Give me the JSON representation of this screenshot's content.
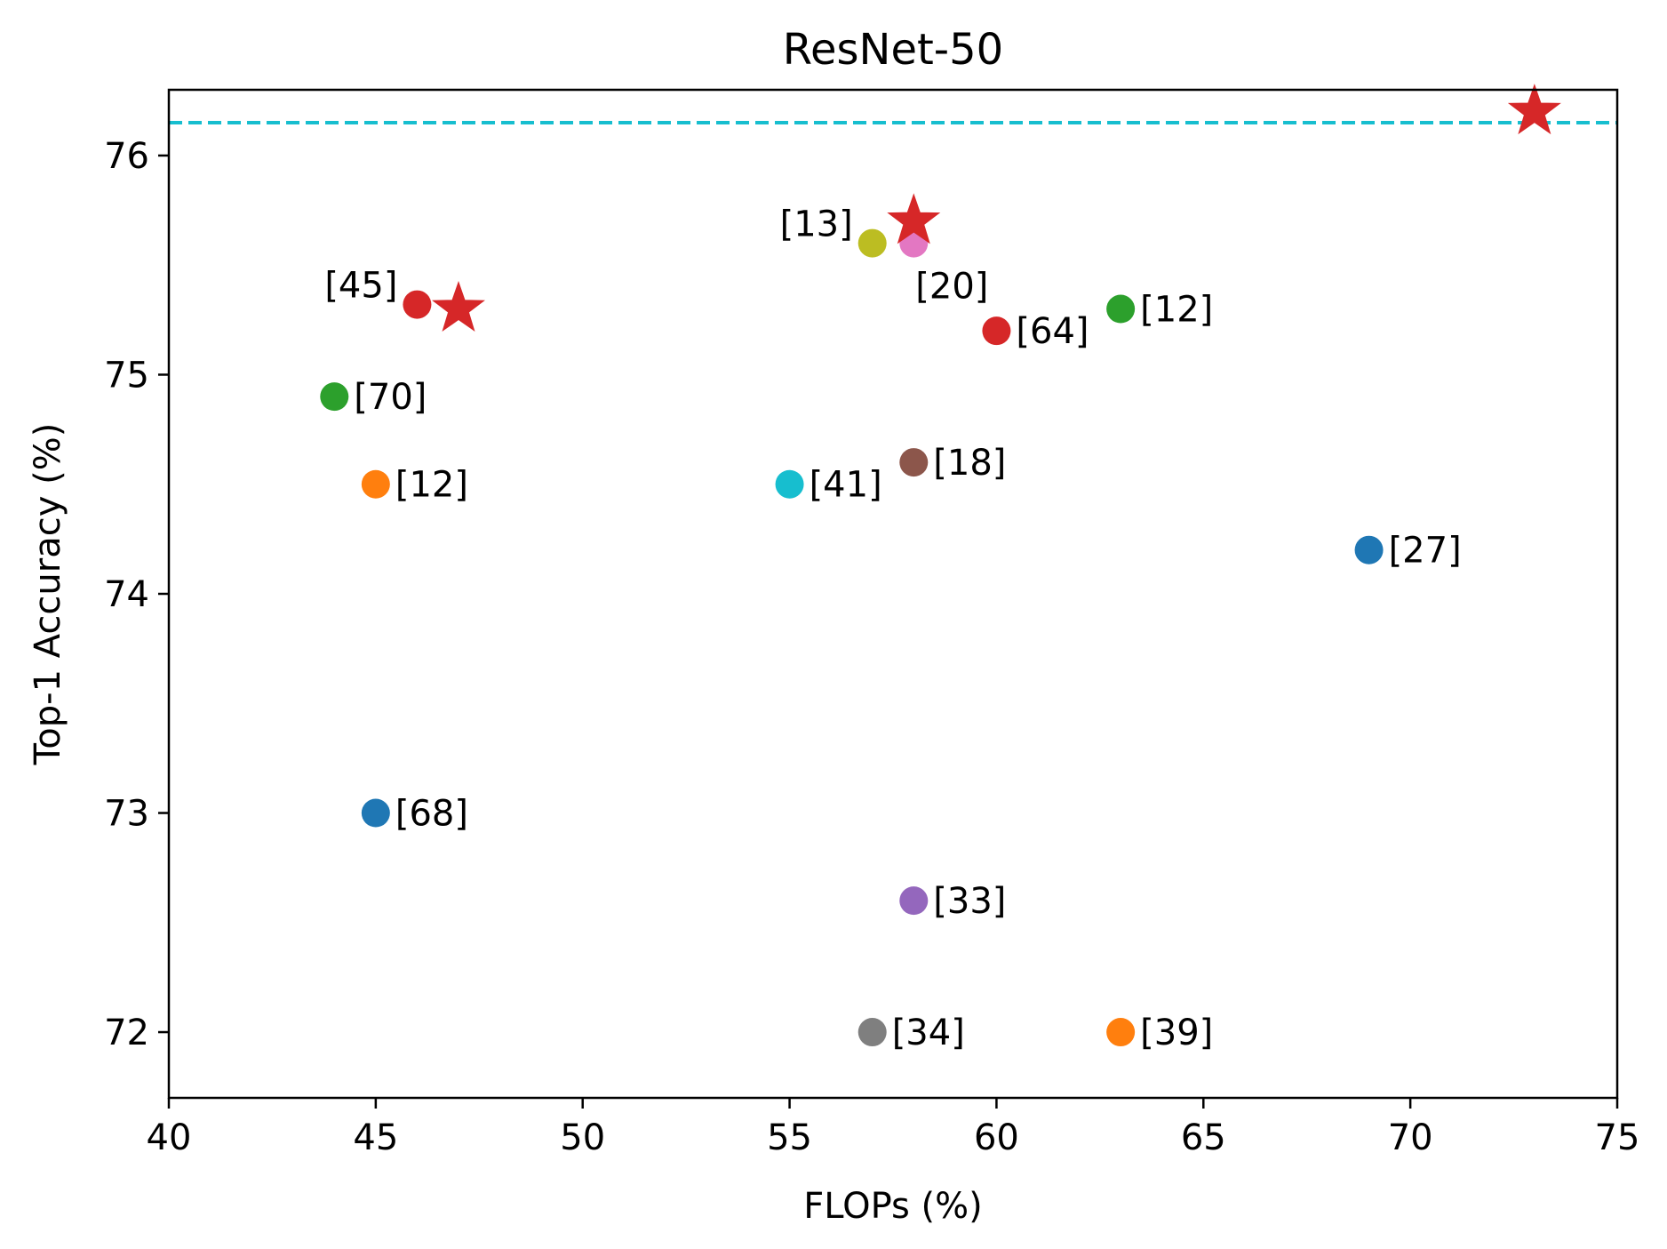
{
  "chart_data": {
    "type": "scatter",
    "title": "ResNet-50",
    "xlabel": "FLOPs (%)",
    "ylabel": "Top-1 Accuracy (%)",
    "xlim": [
      40,
      75
    ],
    "ylim": [
      71.7,
      76.3
    ],
    "xticks": [
      40,
      45,
      50,
      55,
      60,
      65,
      70,
      75
    ],
    "yticks": [
      72,
      73,
      74,
      75,
      76
    ],
    "grid": false,
    "baseline": {
      "y": 76.15,
      "color": "#17becf",
      "style": "dashed"
    },
    "points": [
      {
        "label": "[45]",
        "x": 46,
        "y": 75.32,
        "color": "#d62728",
        "label_pos": "upper-left"
      },
      {
        "label": "[70]",
        "x": 44,
        "y": 74.9,
        "color": "#2ca02c",
        "label_pos": "right"
      },
      {
        "label": "[12]",
        "x": 45,
        "y": 74.5,
        "color": "#ff7f0e",
        "label_pos": "right"
      },
      {
        "label": "[68]",
        "x": 45,
        "y": 73.0,
        "color": "#1f77b4",
        "label_pos": "right"
      },
      {
        "label": "[41]",
        "x": 55,
        "y": 74.5,
        "color": "#17becf",
        "label_pos": "right"
      },
      {
        "label": "[13]",
        "x": 57,
        "y": 75.6,
        "color": "#bcbd22",
        "label_pos": "upper-left"
      },
      {
        "label": "[20]",
        "x": 58,
        "y": 75.6,
        "color": "#e377c2",
        "label_pos": "below"
      },
      {
        "label": "[18]",
        "x": 58,
        "y": 74.6,
        "color": "#8c564b",
        "label_pos": "right"
      },
      {
        "label": "[33]",
        "x": 58,
        "y": 72.6,
        "color": "#9467bd",
        "label_pos": "right"
      },
      {
        "label": "[34]",
        "x": 57,
        "y": 72.0,
        "color": "#7f7f7f",
        "label_pos": "right"
      },
      {
        "label": "[64]",
        "x": 60,
        "y": 75.2,
        "color": "#d62728",
        "label_pos": "right"
      },
      {
        "label": "[12]",
        "x": 63,
        "y": 75.3,
        "color": "#2ca02c",
        "label_pos": "right"
      },
      {
        "label": "[39]",
        "x": 63,
        "y": 72.0,
        "color": "#ff7f0e",
        "label_pos": "right"
      },
      {
        "label": "[27]",
        "x": 69,
        "y": 74.2,
        "color": "#1f77b4",
        "label_pos": "right"
      }
    ],
    "stars": [
      {
        "x": 47,
        "y": 75.3,
        "color": "#d62728"
      },
      {
        "x": 58,
        "y": 75.7,
        "color": "#d62728"
      },
      {
        "x": 73,
        "y": 76.2,
        "color": "#d62728"
      }
    ]
  }
}
